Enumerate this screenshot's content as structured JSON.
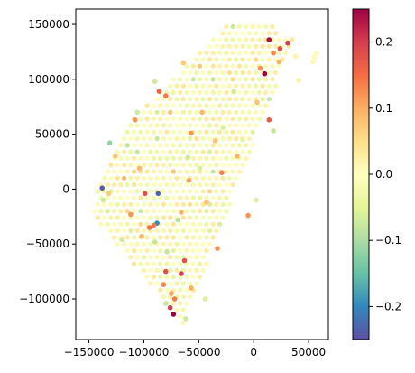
{
  "chart_data": {
    "type": "scatter",
    "title": "",
    "xlabel": "",
    "ylabel": "",
    "xlim": [
      -162000,
      68000
    ],
    "ylim": [
      -137000,
      164000
    ],
    "xticks": [
      {
        "value": -150000,
        "label": "−150000"
      },
      {
        "value": -100000,
        "label": "−100000"
      },
      {
        "value": -50000,
        "label": "−50000"
      },
      {
        "value": 0,
        "label": "0"
      },
      {
        "value": 50000,
        "label": "50000"
      }
    ],
    "yticks": [
      {
        "value": -100000,
        "label": "−100000"
      },
      {
        "value": -50000,
        "label": "−50000"
      },
      {
        "value": 0,
        "label": "0"
      },
      {
        "value": 50000,
        "label": "50000"
      },
      {
        "value": 100000,
        "label": "100000"
      },
      {
        "value": 150000,
        "label": "150000"
      }
    ],
    "colormap": "Spectral_r",
    "colorbar": {
      "range": [
        -0.25,
        0.25
      ],
      "ticks": [
        {
          "value": 0.2,
          "label": "0.2"
        },
        {
          "value": 0.1,
          "label": "0.1"
        },
        {
          "value": 0.0,
          "label": "0.0"
        },
        {
          "value": -0.1,
          "label": "−0.1"
        },
        {
          "value": -0.2,
          "label": "−0.2"
        }
      ]
    },
    "grid": false,
    "background_spots": {
      "description_region": "fan-shaped tissue region",
      "x_step": 6000,
      "y_step": 6000
    },
    "highlight_points": [
      {
        "x": -138000,
        "y": 1000,
        "v": -0.24
      },
      {
        "x": -87000,
        "y": -4000,
        "v": -0.23
      },
      {
        "x": -88000,
        "y": -31000,
        "v": -0.2
      },
      {
        "x": -131000,
        "y": 42000,
        "v": -0.12
      },
      {
        "x": -73000,
        "y": -114000,
        "v": 0.25
      },
      {
        "x": 10000,
        "y": 105000,
        "v": 0.25
      },
      {
        "x": 14000,
        "y": 136000,
        "v": 0.24
      },
      {
        "x": 31000,
        "y": 133000,
        "v": 0.2
      },
      {
        "x": 24000,
        "y": 128000,
        "v": 0.18
      },
      {
        "x": -99000,
        "y": -4000,
        "v": 0.18
      },
      {
        "x": -76000,
        "y": -108000,
        "v": 0.2
      },
      {
        "x": -66000,
        "y": -77000,
        "v": 0.2
      },
      {
        "x": -80000,
        "y": -75000,
        "v": 0.18
      },
      {
        "x": -63000,
        "y": -65000,
        "v": 0.18
      },
      {
        "x": -86000,
        "y": 89000,
        "v": 0.16
      },
      {
        "x": -80000,
        "y": 85000,
        "v": 0.14
      },
      {
        "x": 14000,
        "y": 63000,
        "v": 0.17
      },
      {
        "x": -95000,
        "y": -35000,
        "v": 0.15
      },
      {
        "x": -91000,
        "y": -33000,
        "v": 0.14
      },
      {
        "x": -29000,
        "y": 15000,
        "v": 0.14
      },
      {
        "x": -72000,
        "y": -100000,
        "v": 0.14
      },
      {
        "x": -82000,
        "y": -87000,
        "v": 0.13
      },
      {
        "x": -108000,
        "y": 63000,
        "v": 0.12
      },
      {
        "x": -57000,
        "y": 51000,
        "v": 0.12
      },
      {
        "x": -5000,
        "y": -24000,
        "v": 0.12
      },
      {
        "x": -33000,
        "y": -54000,
        "v": 0.12
      },
      {
        "x": -112000,
        "y": -23000,
        "v": 0.12
      },
      {
        "x": -59000,
        "y": 8000,
        "v": 0.11
      },
      {
        "x": -75000,
        "y": -95000,
        "v": 0.11
      },
      {
        "x": 6000,
        "y": 110000,
        "v": 0.12
      },
      {
        "x": 18000,
        "y": 124000,
        "v": 0.13
      },
      {
        "x": -66000,
        "y": -21000,
        "v": 0.1
      },
      {
        "x": -102000,
        "y": -43000,
        "v": 0.09
      },
      {
        "x": -47000,
        "y": 70000,
        "v": 0.09
      },
      {
        "x": -15000,
        "y": 30000,
        "v": 0.09
      },
      {
        "x": -126000,
        "y": 30000,
        "v": 0.08
      },
      {
        "x": -104000,
        "y": 19000,
        "v": 0.09
      },
      {
        "x": -43000,
        "y": -12000,
        "v": 0.08
      },
      {
        "x": -57000,
        "y": -90000,
        "v": 0.1
      },
      {
        "x": -35000,
        "y": 44000,
        "v": 0.08
      },
      {
        "x": 3000,
        "y": 79000,
        "v": 0.08
      },
      {
        "x": -132000,
        "y": -4000,
        "v": 0.07
      },
      {
        "x": -64000,
        "y": 115000,
        "v": 0.07
      },
      {
        "x": -90000,
        "y": -48000,
        "v": -0.08
      },
      {
        "x": -106000,
        "y": 70000,
        "v": -0.07
      },
      {
        "x": -115000,
        "y": 40000,
        "v": -0.08
      },
      {
        "x": -79000,
        "y": -57000,
        "v": -0.08
      },
      {
        "x": -69000,
        "y": -28000,
        "v": -0.09
      },
      {
        "x": -90000,
        "y": 98000,
        "v": -0.07
      },
      {
        "x": -60000,
        "y": 29000,
        "v": -0.07
      },
      {
        "x": -28000,
        "y": 56000,
        "v": -0.06
      },
      {
        "x": 18000,
        "y": 53000,
        "v": -0.08
      },
      {
        "x": -120000,
        "y": -46000,
        "v": -0.07
      },
      {
        "x": -62000,
        "y": -118000,
        "v": -0.07
      },
      {
        "x": -44000,
        "y": -100000,
        "v": -0.06
      },
      {
        "x": -18000,
        "y": 89000,
        "v": -0.07
      },
      {
        "x": -49000,
        "y": 19000,
        "v": -0.06
      },
      {
        "x": -137000,
        "y": -10000,
        "v": -0.07
      },
      {
        "x": -80000,
        "y": -104000,
        "v": -0.08
      },
      {
        "x": 2000,
        "y": -10000,
        "v": -0.06
      },
      {
        "x": -10000,
        "y": 45000,
        "v": -0.05
      },
      {
        "x": 23000,
        "y": 116000,
        "v": 0.1
      },
      {
        "x": 38000,
        "y": 121000,
        "v": 0.02
      },
      {
        "x": 41000,
        "y": 99000,
        "v": 0.02
      },
      {
        "x": 55000,
        "y": 120000,
        "v": 0.01
      },
      {
        "x": 54000,
        "y": 116000,
        "v": 0.01
      },
      {
        "x": 57000,
        "y": 124000,
        "v": 0.01
      }
    ]
  }
}
